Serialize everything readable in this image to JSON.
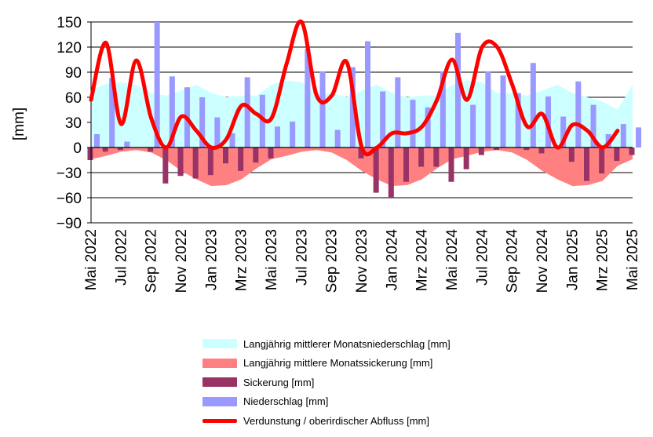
{
  "chart_data": {
    "type": "bar",
    "ylabel": "[mm]",
    "ylim": [
      -90,
      150
    ],
    "yticks": [
      150,
      120,
      90,
      60,
      30,
      0,
      -30,
      -60,
      -90
    ],
    "grid": true,
    "legend_position": "bottom",
    "months": [
      "Mai 2022",
      "Jun 2022",
      "Jul 2022",
      "Aug 2022",
      "Sep 2022",
      "Okt 2022",
      "Nov 2022",
      "Dez 2022",
      "Jan 2023",
      "Feb 2023",
      "Mrz 2023",
      "Apr 2023",
      "Mai 2023",
      "Jun 2023",
      "Jul 2023",
      "Aug 2023",
      "Sep 2023",
      "Okt 2023",
      "Nov 2023",
      "Dez 2023",
      "Jan 2024",
      "Feb 2024",
      "Mrz 2024",
      "Apr 2024",
      "Mai 2024",
      "Jun 2024",
      "Jul 2024",
      "Aug 2024",
      "Sep 2024",
      "Okt 2024",
      "Nov 2024",
      "Dez 2024",
      "Jan 2025",
      "Feb 2025",
      "Mrz 2025",
      "Apr 2025",
      "Mai 2025"
    ],
    "x_tick_labels": [
      "Mai 2022",
      "",
      "Jul 2022",
      "",
      "Sep 2022",
      "",
      "Nov 2022",
      "",
      "Jan 2023",
      "",
      "Mrz 2023",
      "",
      "Mai 2023",
      "",
      "Jul 2023",
      "",
      "Sep 2023",
      "",
      "Nov 2023",
      "",
      "Jan 2024",
      "",
      "Mrz 2024",
      "",
      "Mai 2024",
      "",
      "Jul 2024",
      "",
      "Sep 2024",
      "",
      "Nov 2024",
      "",
      "Jan 2025",
      "",
      "Mrz 2025",
      "",
      "Mai 2025"
    ],
    "series": [
      {
        "name": "Langjährig mittlerer Monatsniederschlag [mm]",
        "type": "area",
        "color": "#ccffff",
        "values": [
          68,
          76,
          78,
          75,
          65,
          62,
          68,
          75,
          65,
          60,
          62,
          62,
          75,
          80,
          78,
          65,
          65,
          60,
          68,
          75,
          65,
          60,
          62,
          62,
          75,
          80,
          78,
          65,
          65,
          62,
          68,
          75,
          65,
          60,
          55,
          45,
          75
        ]
      },
      {
        "name": "Langjährig mittlere Monatssickerung [mm]",
        "type": "area",
        "color": "#ff8080",
        "values": [
          -14,
          -10,
          -5,
          -3,
          -6,
          -15,
          -28,
          -38,
          -46,
          -45,
          -38,
          -25,
          -14,
          -10,
          -5,
          -3,
          -6,
          -15,
          -28,
          -38,
          -46,
          -45,
          -38,
          -25,
          -14,
          -10,
          -5,
          -3,
          -6,
          -15,
          -28,
          -38,
          -46,
          -45,
          -40,
          -22,
          -14
        ]
      },
      {
        "name": "Sickerung [mm]",
        "type": "bar",
        "color": "#993366",
        "values": [
          -15,
          -5,
          -3,
          0,
          -5,
          -43,
          -34,
          -37,
          -33,
          -19,
          -28,
          -18,
          -13,
          0,
          0,
          0,
          0,
          0,
          -13,
          -54,
          -60,
          -41,
          -23,
          -23,
          -41,
          -26,
          -9,
          -3,
          0,
          -3,
          -7,
          0,
          -17,
          -40,
          -31,
          -16,
          -9
        ]
      },
      {
        "name": "Niederschlag [mm]",
        "type": "bar",
        "color": "#9999ff",
        "values": [
          16,
          83,
          7,
          0,
          150,
          85,
          72,
          60,
          36,
          17,
          84,
          63,
          25,
          31,
          118,
          91,
          21,
          96,
          127,
          67,
          84,
          57,
          48,
          91,
          137,
          51,
          91,
          86,
          65,
          101,
          61,
          37,
          79,
          51,
          16,
          28,
          24
        ]
      },
      {
        "name": "Verdunstung / oberirdischer Abfluss [mm]",
        "type": "line",
        "color": "#ff0000",
        "values": [
          57,
          125,
          28,
          104,
          35,
          0,
          37,
          20,
          0,
          10,
          50,
          40,
          35,
          100,
          150,
          62,
          62,
          102,
          0,
          0,
          17,
          17,
          25,
          57,
          105,
          57,
          120,
          120,
          75,
          25,
          40,
          0,
          27,
          20,
          0,
          20,
          null
        ]
      }
    ]
  }
}
